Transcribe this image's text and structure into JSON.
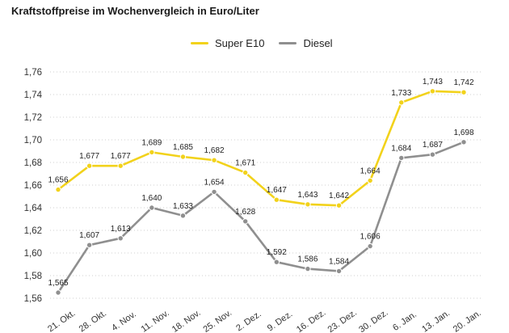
{
  "chart_data": {
    "type": "line",
    "title": "Kraftstoffpreise im Wochenvergleich in Euro/Liter",
    "categories": [
      "21. Okt.",
      "28. Okt.",
      "4. Nov.",
      "11. Nov.",
      "18. Nov.",
      "25. Nov.",
      "2. Dez.",
      "9. Dez.",
      "16. Dez.",
      "23. Dez.",
      "30. Dez.",
      "6. Jan.",
      "13. Jan.",
      "20. Jan."
    ],
    "series": [
      {
        "name": "Super E10",
        "color": "#f2d21b",
        "values": [
          1.656,
          1.677,
          1.677,
          1.689,
          1.685,
          1.682,
          1.671,
          1.647,
          1.643,
          1.642,
          1.664,
          1.733,
          1.743,
          1.742
        ],
        "labels": [
          "1,656",
          "1,677",
          "1,677",
          "1,689",
          "1,685",
          "1,682",
          "1,671",
          "1,647",
          "1,643",
          "1,642",
          "1,664",
          "1,733",
          "1,743",
          "1,742"
        ]
      },
      {
        "name": "Diesel",
        "color": "#8f8f8f",
        "values": [
          1.565,
          1.607,
          1.613,
          1.64,
          1.633,
          1.654,
          1.628,
          1.592,
          1.586,
          1.584,
          1.606,
          1.684,
          1.687,
          1.698
        ],
        "labels": [
          "1,565",
          "1,607",
          "1,613",
          "1,640",
          "1,633",
          "1,654",
          "1,628",
          "1,592",
          "1,586",
          "1,584",
          "1,606",
          "1,684",
          "1,687",
          "1,698"
        ]
      }
    ],
    "ylim": [
      1.56,
      1.76
    ],
    "yticks": [
      1.56,
      1.58,
      1.6,
      1.62,
      1.64,
      1.66,
      1.68,
      1.7,
      1.72,
      1.74,
      1.76
    ],
    "ytick_labels": [
      "1,56",
      "1,58",
      "1,60",
      "1,62",
      "1,64",
      "1,66",
      "1,68",
      "1,70",
      "1,72",
      "1,74",
      "1,76"
    ],
    "grid": "horizontal-dotted",
    "legend_position": "top-center"
  }
}
